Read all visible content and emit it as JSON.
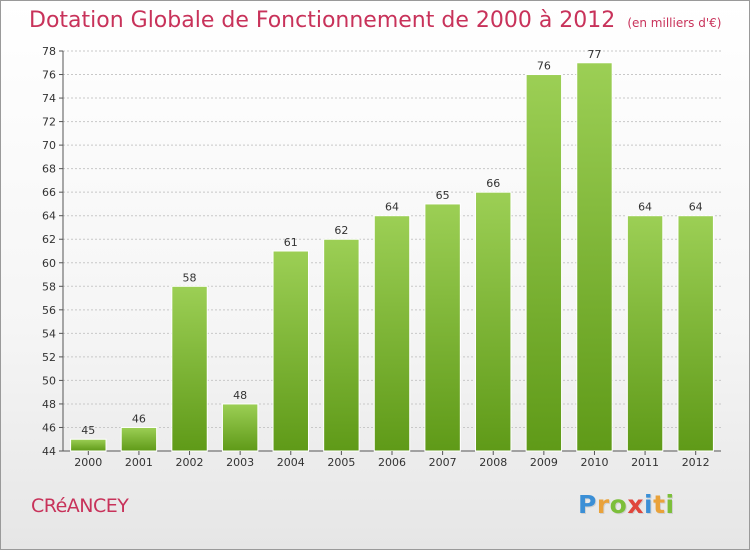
{
  "title": "Dotation Globale de Fonctionnement de 2000 à 2012",
  "unit": "(en milliers d'€)",
  "commune": "CRéANCEY",
  "logo": {
    "letters": [
      "P",
      "r",
      "o",
      "x",
      "i",
      "t",
      "i"
    ],
    "colors": [
      "#3b8fd6",
      "#e9a23b",
      "#7cbf3a",
      "#e0463c",
      "#3b8fd6",
      "#e9a23b",
      "#7cbf3a"
    ]
  },
  "colors": {
    "bar_light": "#9ccf55",
    "bar_dark": "#5f9a18",
    "grid": "#c8c8c8",
    "text_accent": "#c8325a"
  },
  "chart_data": {
    "type": "bar",
    "title": "Dotation Globale de Fonctionnement de 2000 à 2012",
    "subtitle": "(en milliers d'€)",
    "categories": [
      "2000",
      "2001",
      "2002",
      "2003",
      "2004",
      "2005",
      "2006",
      "2007",
      "2008",
      "2009",
      "2010",
      "2011",
      "2012"
    ],
    "values": [
      45,
      46,
      58,
      48,
      61,
      62,
      64,
      65,
      66,
      76,
      77,
      64,
      64
    ],
    "ylim": [
      44,
      78
    ],
    "yticks": [
      44,
      46,
      48,
      50,
      52,
      54,
      56,
      58,
      60,
      62,
      64,
      66,
      68,
      70,
      72,
      74,
      76,
      78
    ],
    "grid": true,
    "data_labels": true
  }
}
